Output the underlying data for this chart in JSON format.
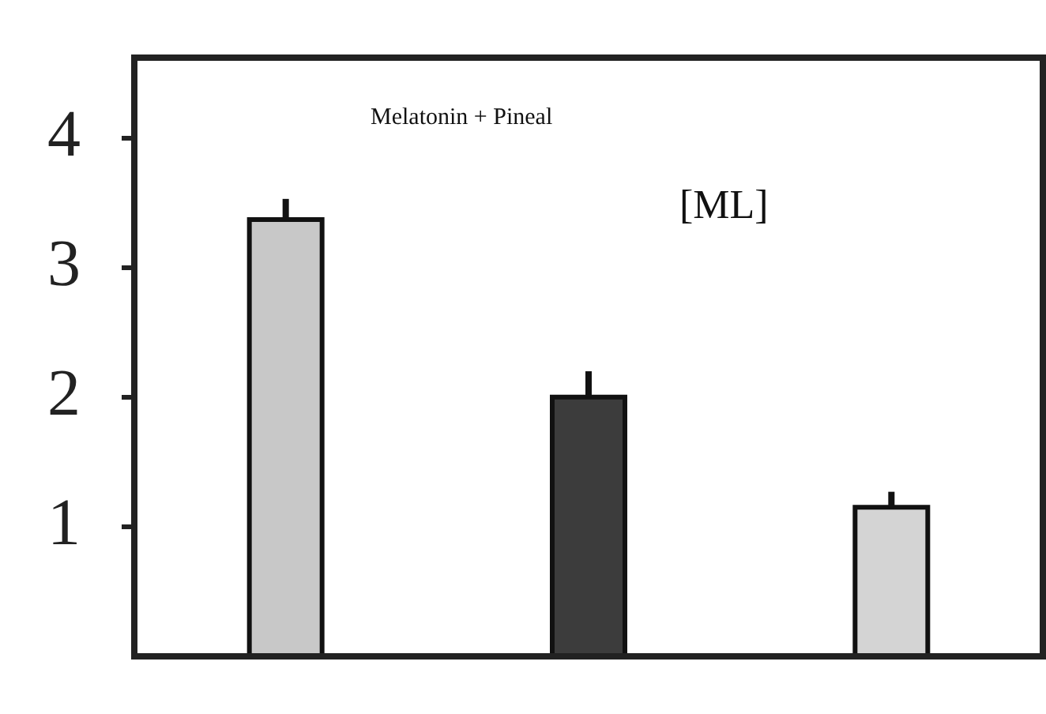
{
  "chart_data": {
    "type": "bar",
    "annotations": [
      "Melatonin + Pineal",
      "[ML]"
    ],
    "categories": [
      null,
      null,
      null
    ],
    "values": [
      3.37,
      2.0,
      1.15
    ],
    "colors": [
      "#c8c8c8",
      "#3c3c3c",
      "#d4d4d4"
    ],
    "errors": [
      [
        3.37,
        3.53
      ],
      [
        2.0,
        2.2
      ],
      [
        1.15,
        1.27
      ]
    ],
    "ylim": [
      0,
      4.62
    ],
    "yticks": [
      1,
      2,
      3,
      4
    ],
    "grid": false,
    "legend": false,
    "tick_labels": "y"
  }
}
